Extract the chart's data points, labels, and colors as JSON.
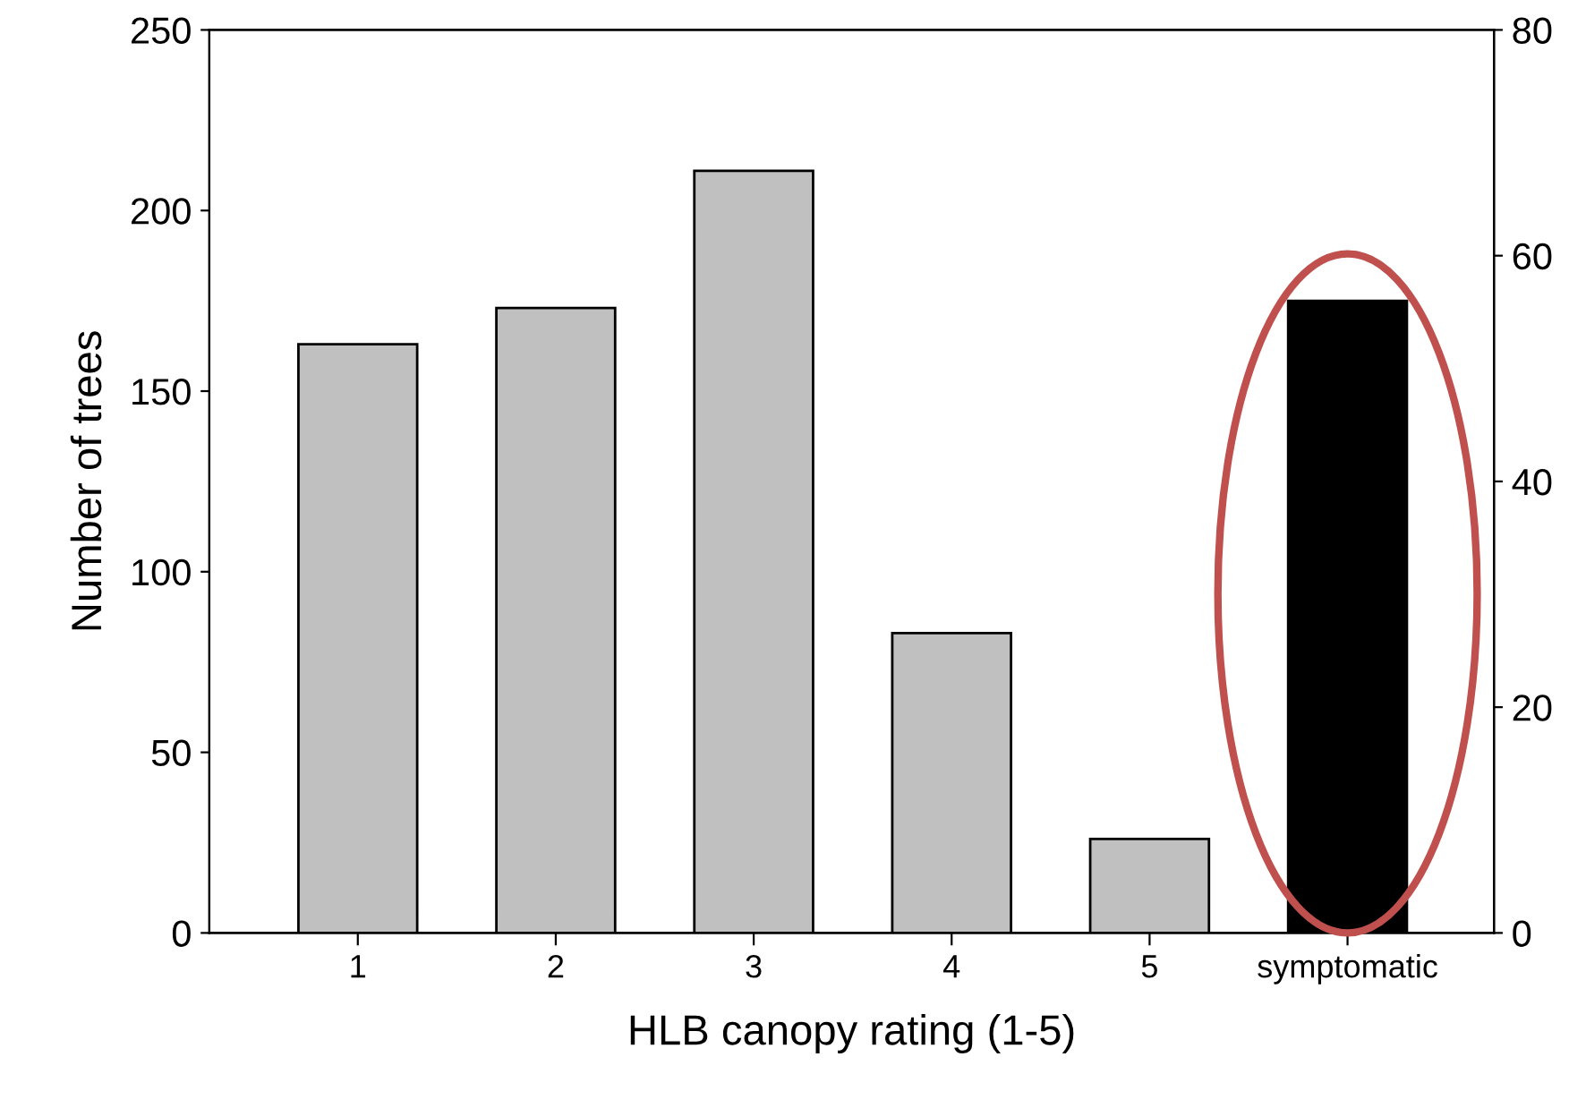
{
  "chart_data": {
    "type": "bar",
    "xlabel": "HLB canopy rating (1-5)",
    "ylabel": "Number of trees",
    "categories": [
      "1",
      "2",
      "3",
      "4",
      "5",
      "symptomatic"
    ],
    "series": [
      {
        "color": "#c0c0c0",
        "values": [
          163,
          173,
          211,
          83,
          26,
          null
        ]
      },
      {
        "color": "#000000",
        "axis": "y2",
        "values": [
          null,
          null,
          null,
          null,
          null,
          56
        ]
      }
    ],
    "ylim": [
      0,
      250
    ],
    "yticks": [
      0,
      50,
      100,
      150,
      200,
      250
    ],
    "y2lim": [
      0,
      80
    ],
    "y2ticks": [
      0,
      20,
      40,
      60,
      80
    ],
    "grid": false,
    "legend": false
  }
}
